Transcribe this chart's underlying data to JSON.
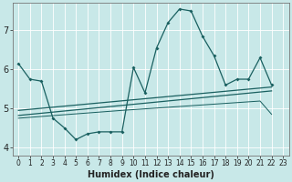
{
  "xlabel": "Humidex (Indice chaleur)",
  "background_color": "#c8e8e8",
  "grid_color": "#ffffff",
  "line_color": "#1a6060",
  "xlim": [
    -0.5,
    23.5
  ],
  "ylim": [
    3.8,
    7.7
  ],
  "yticks": [
    4,
    5,
    6,
    7
  ],
  "xticks": [
    0,
    1,
    2,
    3,
    4,
    5,
    6,
    7,
    8,
    9,
    10,
    11,
    12,
    13,
    14,
    15,
    16,
    17,
    18,
    19,
    20,
    21,
    22,
    23
  ],
  "main_x": [
    0,
    1,
    2,
    3,
    4,
    5,
    6,
    7,
    8,
    9,
    10,
    11,
    12,
    13,
    14,
    15,
    16,
    17,
    18,
    19,
    20,
    21,
    22
  ],
  "main_y": [
    6.15,
    5.75,
    5.7,
    4.75,
    4.5,
    4.2,
    4.35,
    4.4,
    4.4,
    4.4,
    6.05,
    5.4,
    6.55,
    7.2,
    7.55,
    7.5,
    6.85,
    6.35,
    5.6,
    5.75,
    5.75,
    6.3,
    5.6
  ],
  "trend1_x": [
    0,
    22
  ],
  "trend1_y": [
    4.82,
    5.45
  ],
  "trend2_x": [
    0,
    22
  ],
  "trend2_y": [
    4.95,
    5.55
  ],
  "flat_x": [
    0,
    9,
    10,
    11,
    12,
    13,
    14,
    15,
    16,
    17,
    18,
    19,
    20,
    21,
    22
  ],
  "flat_y": [
    4.75,
    4.95,
    4.97,
    4.99,
    5.01,
    5.03,
    5.05,
    5.07,
    5.09,
    5.11,
    5.13,
    5.15,
    5.17,
    5.19,
    4.85
  ],
  "xlabel_fontsize": 7,
  "tick_fontsize": 5.5,
  "ytick_fontsize": 7,
  "line_width": 0.9,
  "marker_size": 2.0
}
